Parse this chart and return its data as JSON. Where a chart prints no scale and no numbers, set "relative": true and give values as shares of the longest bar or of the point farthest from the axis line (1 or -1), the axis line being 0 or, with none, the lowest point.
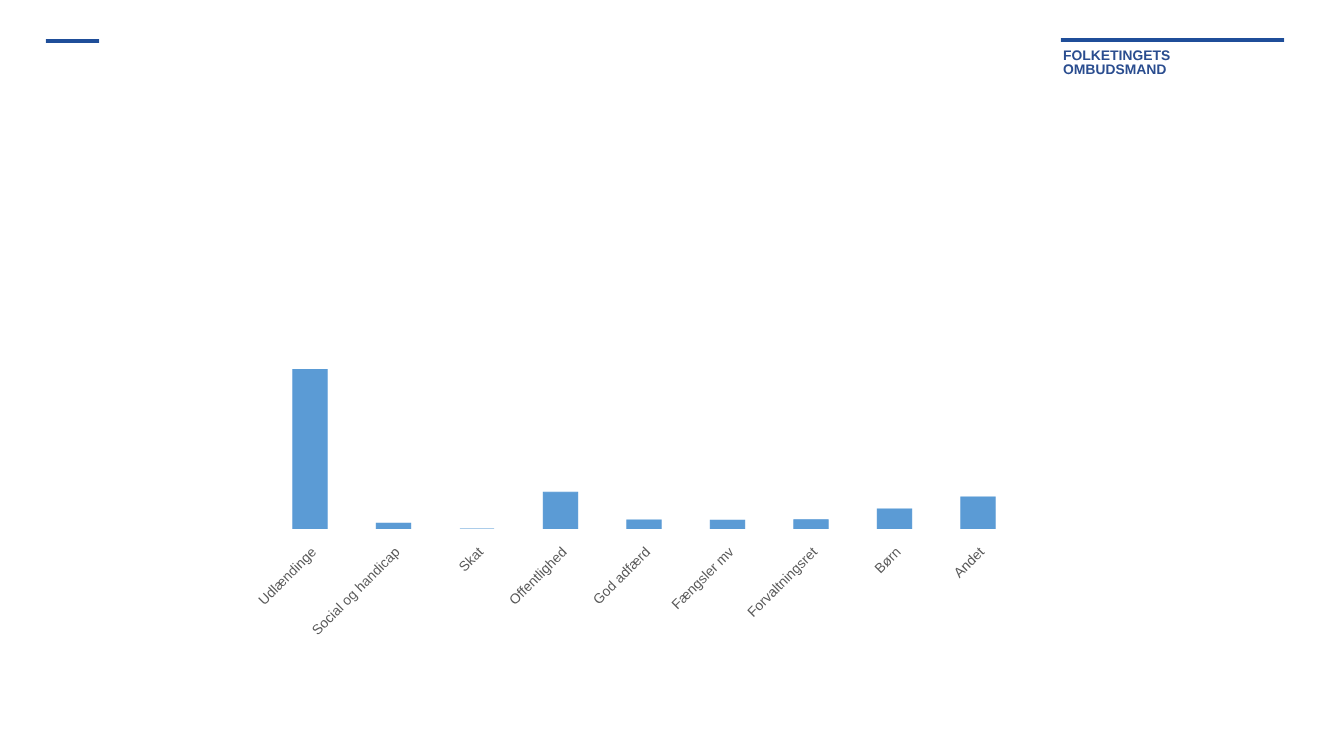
{
  "chart_data": {
    "type": "bar",
    "relative": true,
    "categories": [
      "Udlændinge",
      "Social og handicap",
      "Skat",
      "Offentlighed",
      "God adfærd",
      "Fængsler mv",
      "Forvaltningsret",
      "Børn",
      "Andet"
    ],
    "values": [
      1,
      0.035,
      0,
      0.23,
      0.056,
      0.054,
      0.058,
      0.125,
      0.2
    ],
    "color": "#5b9bd5",
    "annotations": [
      "FOLKETINGETS\nOMBUDSMAND"
    ]
  }
}
